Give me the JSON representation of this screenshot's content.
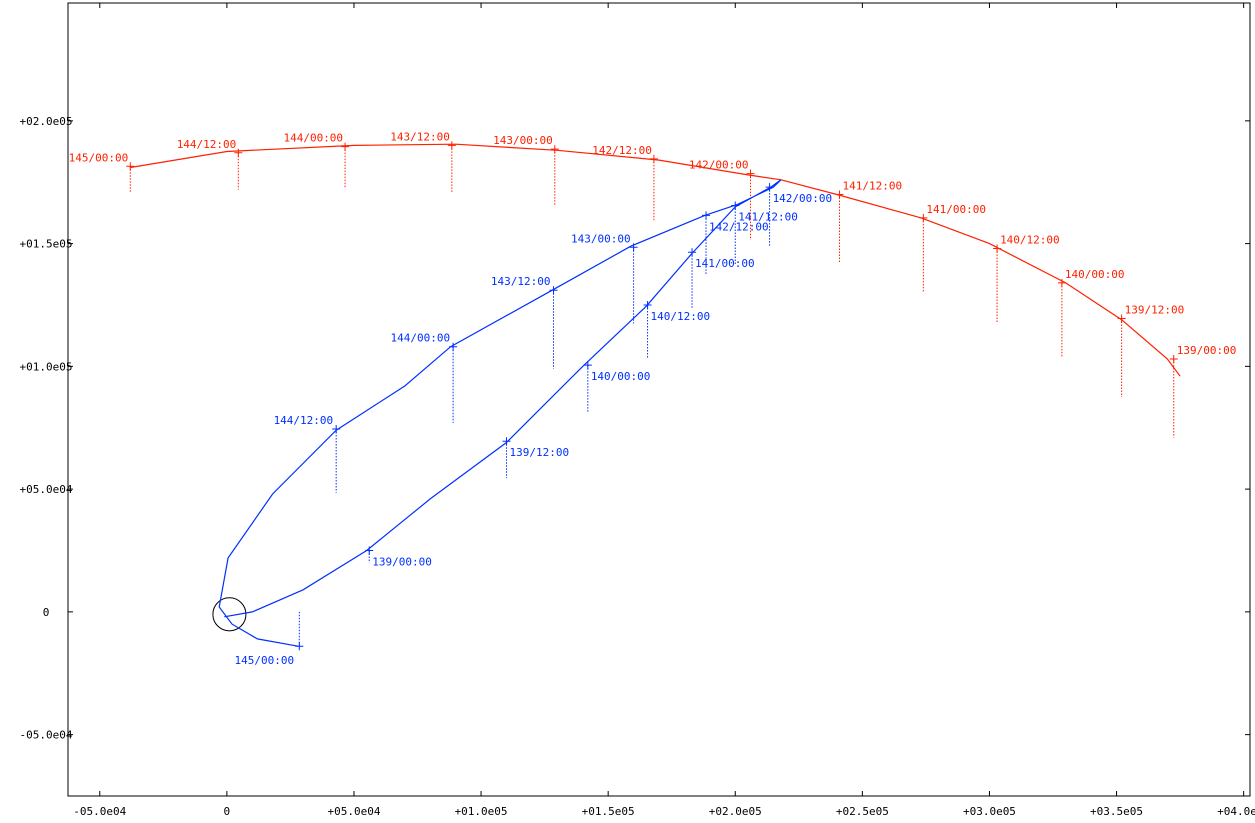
{
  "chart_data": {
    "type": "line",
    "title": "",
    "xlabel": "",
    "ylabel": "",
    "xlim": [
      -62500,
      402500
    ],
    "ylim": [
      -75000,
      248000
    ],
    "grid": false,
    "x_ticks": [
      {
        "value": -50000,
        "label": "-05.0e04"
      },
      {
        "value": 0,
        "label": "0"
      },
      {
        "value": 50000,
        "label": "+05.0e04"
      },
      {
        "value": 100000,
        "label": "+01.0e05"
      },
      {
        "value": 150000,
        "label": "+01.5e05"
      },
      {
        "value": 200000,
        "label": "+02.0e05"
      },
      {
        "value": 250000,
        "label": "+02.5e05"
      },
      {
        "value": 300000,
        "label": "+03.0e05"
      },
      {
        "value": 350000,
        "label": "+03.5e05"
      },
      {
        "value": 400000,
        "label": "+04.0e05"
      }
    ],
    "y_ticks": [
      {
        "value": -50000,
        "label": "-05.0e04"
      },
      {
        "value": 0,
        "label": "0"
      },
      {
        "value": 50000,
        "label": "+05.0e04"
      },
      {
        "value": 100000,
        "label": "+01.0e05"
      },
      {
        "value": 150000,
        "label": "+01.5e05"
      },
      {
        "value": 200000,
        "label": "+02.0e05"
      }
    ],
    "body_circle": {
      "cx": 1000,
      "cy": -1000,
      "r": 6500
    },
    "series": [
      {
        "color": "#ff2000",
        "path": [
          [
            -38000,
            181000
          ],
          [
            0,
            187500
          ],
          [
            50000,
            190000
          ],
          [
            90000,
            190500
          ],
          [
            130000,
            188000
          ],
          [
            170000,
            184000
          ],
          [
            205000,
            178000
          ],
          [
            218000,
            176000
          ],
          [
            240000,
            170000
          ],
          [
            273000,
            160500
          ],
          [
            300000,
            150000
          ],
          [
            330000,
            134000
          ],
          [
            352000,
            119000
          ],
          [
            370000,
            103000
          ],
          [
            375000,
            96000
          ]
        ],
        "points": [
          {
            "x": 372500,
            "y": 103000,
            "z": -32000,
            "label": "139/00:00"
          },
          {
            "x": 352000,
            "y": 119500,
            "z": -32000,
            "label": "139/12:00"
          },
          {
            "x": 328500,
            "y": 134000,
            "z": -30000,
            "label": "140/00:00"
          },
          {
            "x": 303000,
            "y": 148000,
            "z": -30000,
            "label": "140/12:00"
          },
          {
            "x": 274000,
            "y": 160500,
            "z": -30000,
            "label": "141/00:00"
          },
          {
            "x": 241000,
            "y": 170000,
            "z": -28000,
            "label": "141/12:00"
          },
          {
            "x": 206000,
            "y": 178500,
            "z": -27000,
            "label": "142/00:00"
          },
          {
            "x": 168000,
            "y": 184500,
            "z": -25000,
            "label": "142/12:00"
          },
          {
            "x": 129000,
            "y": 188500,
            "z": -23000,
            "label": "143/00:00"
          },
          {
            "x": 88500,
            "y": 190000,
            "z": -19000,
            "label": "143/12:00"
          },
          {
            "x": 46500,
            "y": 189500,
            "z": -17000,
            "label": "144/00:00"
          },
          {
            "x": 4500,
            "y": 187000,
            "z": -15000,
            "label": "144/12:00"
          },
          {
            "x": -38000,
            "y": 181500,
            "z": -11000,
            "label": "145/00:00"
          }
        ]
      },
      {
        "color": "#0030ff",
        "path": [
          [
            28000,
            -14000
          ],
          [
            12000,
            -11000
          ],
          [
            2000,
            -5000
          ],
          [
            -3000,
            2000
          ],
          [
            500,
            22000
          ],
          [
            18000,
            48000
          ],
          [
            43000,
            74000
          ],
          [
            70000,
            92000
          ],
          [
            88000,
            108000
          ],
          [
            128000,
            131000
          ],
          [
            159000,
            149000
          ],
          [
            188000,
            161500
          ],
          [
            201000,
            166000
          ],
          [
            215000,
            173000
          ],
          [
            218000,
            176000
          ],
          [
            214000,
            173000
          ],
          [
            200000,
            165000
          ],
          [
            183000,
            146000
          ],
          [
            165000,
            124500
          ],
          [
            140000,
            100000
          ],
          [
            110000,
            69000
          ],
          [
            80000,
            46000
          ],
          [
            55000,
            25000
          ],
          [
            30000,
            9000
          ],
          [
            10000,
            0
          ],
          [
            -1000,
            -2000
          ]
        ],
        "points": [
          {
            "x": 56000,
            "y": 25000,
            "z": -5000,
            "label": "139/00:00"
          },
          {
            "x": 110000,
            "y": 69500,
            "z": -15000,
            "label": "139/12:00"
          },
          {
            "x": 142000,
            "y": 100500,
            "z": -19000,
            "label": "140/00:00"
          },
          {
            "x": 165500,
            "y": 125000,
            "z": -22000,
            "label": "140/12:00"
          },
          {
            "x": 183000,
            "y": 146500,
            "z": -23000,
            "label": "141/00:00"
          },
          {
            "x": 200000,
            "y": 165500,
            "z": -24000,
            "label": "141/12:00"
          },
          {
            "x": 213500,
            "y": 173000,
            "z": -24000,
            "label": "142/00:00"
          },
          {
            "x": 188500,
            "y": 161500,
            "z": -24000,
            "label": "142/12:00"
          },
          {
            "x": 160000,
            "y": 148500,
            "z": -31000,
            "label": "143/00:00"
          },
          {
            "x": 128500,
            "y": 131000,
            "z": -32000,
            "label": "143/12:00"
          },
          {
            "x": 89000,
            "y": 108000,
            "z": -31000,
            "label": "144/00:00"
          },
          {
            "x": 43000,
            "y": 74500,
            "z": -26000,
            "label": "144/12:00"
          },
          {
            "x": 28500,
            "y": -14000,
            "z": 14000,
            "label": "145/00:00"
          }
        ]
      }
    ]
  }
}
